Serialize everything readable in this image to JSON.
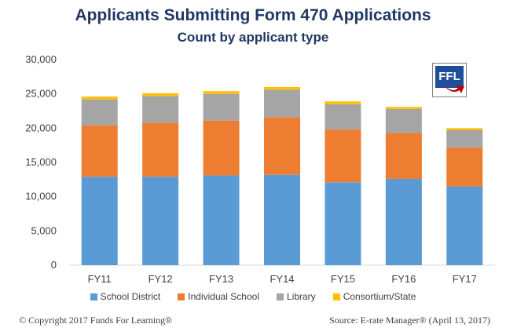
{
  "chart_data": {
    "type": "bar",
    "stacked": true,
    "title": "Applicants Submitting Form 470 Applications",
    "subtitle": "Count by applicant type",
    "categories": [
      "FY11",
      "FY12",
      "FY13",
      "FY14",
      "FY15",
      "FY16",
      "FY17"
    ],
    "series": [
      {
        "name": "School District",
        "color": "#5b9bd5",
        "values": [
          12900,
          12900,
          13100,
          13200,
          12100,
          12600,
          11500
        ]
      },
      {
        "name": "Individual School",
        "color": "#ed7d31",
        "values": [
          7500,
          7900,
          8000,
          8400,
          7700,
          6700,
          5700
        ]
      },
      {
        "name": "Library",
        "color": "#a5a5a5",
        "values": [
          3800,
          3900,
          3900,
          4000,
          3700,
          3500,
          2500
        ]
      },
      {
        "name": "Consortium/State",
        "color": "#ffc000",
        "values": [
          400,
          400,
          400,
          400,
          400,
          300,
          300
        ]
      }
    ],
    "ylim": [
      0,
      30000
    ],
    "yticks": [
      0,
      5000,
      10000,
      15000,
      20000,
      25000,
      30000
    ],
    "ytick_labels": [
      "0",
      "5,000",
      "10,000",
      "15,000",
      "20,000",
      "25,000",
      "30,000"
    ],
    "grid": false,
    "legend_position": "bottom"
  },
  "logo": {
    "text": "FFL",
    "color": "#1f4e9a",
    "arrow_color": "#c00000"
  },
  "footer": {
    "copyright": "© Copyright 2017 Funds For Learning®",
    "source": "Source: E-rate Manager® (April 13, 2017)"
  }
}
